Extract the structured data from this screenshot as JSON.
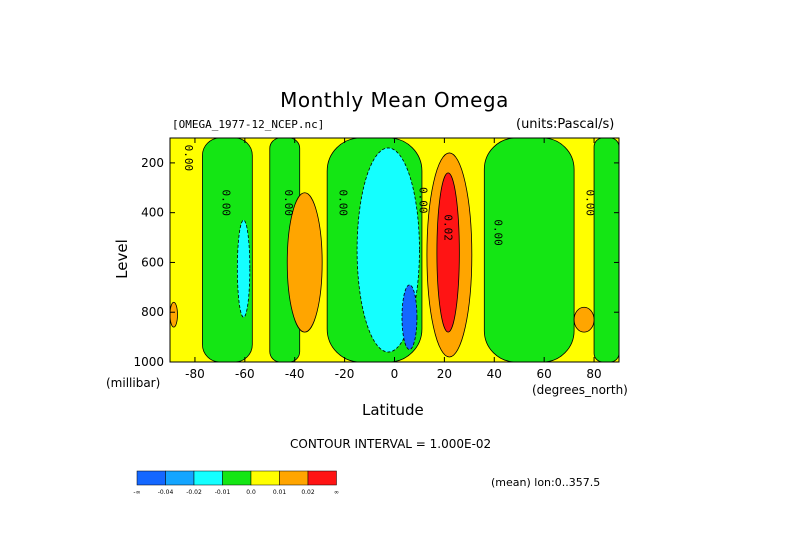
{
  "title": "Monthly Mean Omega",
  "dataset": "[OMEGA_1977-12_NCEP.nc]",
  "units": "(units:Pascal/s)",
  "ylabel": "Level",
  "yunit": "(millibar)",
  "xlabel": "Latitude",
  "xunit": "(degrees_north)",
  "contour_note": "CONTOUR INTERVAL = 1.000E-02",
  "mean_note": "(mean) lon:0..357.5",
  "colorbar": {
    "colors": [
      "#1467ff",
      "#14a5ff",
      "#14ffff",
      "#14e614",
      "#ffff00",
      "#ffa500",
      "#ff1414"
    ],
    "labels": [
      "-∞",
      "-0.04",
      "-0.02",
      "-0.01",
      "0.0",
      "0.01",
      "0.02",
      "∞"
    ]
  },
  "chart_data": {
    "type": "heatmap",
    "title": "Monthly Mean Omega",
    "xlabel": "Latitude",
    "ylabel": "Level",
    "x_units": "degrees_north",
    "y_units": "millibar",
    "xlim": [
      -90,
      90
    ],
    "ylim": [
      1000,
      100
    ],
    "x_ticks": [
      -80,
      -60,
      -40,
      -20,
      0,
      20,
      40,
      60,
      80
    ],
    "y_ticks": [
      200,
      400,
      600,
      800,
      1000
    ],
    "contour_interval": 0.01,
    "contour_labels": [
      {
        "text": "0.00",
        "x": -84,
        "y": 180
      },
      {
        "text": "0.00",
        "x": -69,
        "y": 360
      },
      {
        "text": "0.00",
        "x": -44,
        "y": 360
      },
      {
        "text": "0.00",
        "x": -22,
        "y": 360
      },
      {
        "text": "0.00",
        "x": 10,
        "y": 350
      },
      {
        "text": "0.02",
        "x": 20,
        "y": 460
      },
      {
        "text": "0.00",
        "x": 40,
        "y": 480
      },
      {
        "text": "0.00",
        "x": 77,
        "y": 360
      }
    ],
    "regions": [
      {
        "level": 0.0,
        "desc": "yellow",
        "x": [
          -90,
          90
        ],
        "y": [
          100,
          1000
        ]
      },
      {
        "level": -0.01,
        "desc": "green",
        "x": [
          -77,
          -57
        ],
        "y": [
          100,
          1000
        ]
      },
      {
        "level": -0.01,
        "desc": "green",
        "x": [
          -50,
          -38
        ],
        "y": [
          100,
          1000
        ]
      },
      {
        "level": -0.02,
        "desc": "cyan",
        "x": [
          -63,
          -58
        ],
        "y": [
          430,
          820
        ]
      },
      {
        "level": 0.01,
        "desc": "orange",
        "x": [
          -43,
          -29
        ],
        "y": [
          320,
          880
        ]
      },
      {
        "level": -0.01,
        "desc": "green",
        "x": [
          -27,
          11
        ],
        "y": [
          100,
          1000
        ]
      },
      {
        "level": -0.02,
        "desc": "cyan",
        "x": [
          -15,
          10
        ],
        "y": [
          140,
          960
        ]
      },
      {
        "level": -0.04,
        "desc": "blue",
        "x": [
          3,
          9
        ],
        "y": [
          690,
          950
        ]
      },
      {
        "level": 0.01,
        "desc": "orange",
        "x": [
          13,
          31
        ],
        "y": [
          160,
          980
        ]
      },
      {
        "level": 0.02,
        "desc": "red",
        "x": [
          17,
          26
        ],
        "y": [
          240,
          880
        ]
      },
      {
        "level": -0.01,
        "desc": "green",
        "x": [
          36,
          72
        ],
        "y": [
          100,
          1000
        ]
      },
      {
        "level": -0.01,
        "desc": "green",
        "x": [
          80,
          90
        ],
        "y": [
          100,
          1000
        ]
      },
      {
        "level": 0.01,
        "desc": "orange",
        "x": [
          72,
          80
        ],
        "y": [
          780,
          880
        ]
      },
      {
        "level": 0.01,
        "desc": "orange",
        "x": [
          -90,
          -87
        ],
        "y": [
          760,
          860
        ]
      }
    ]
  }
}
